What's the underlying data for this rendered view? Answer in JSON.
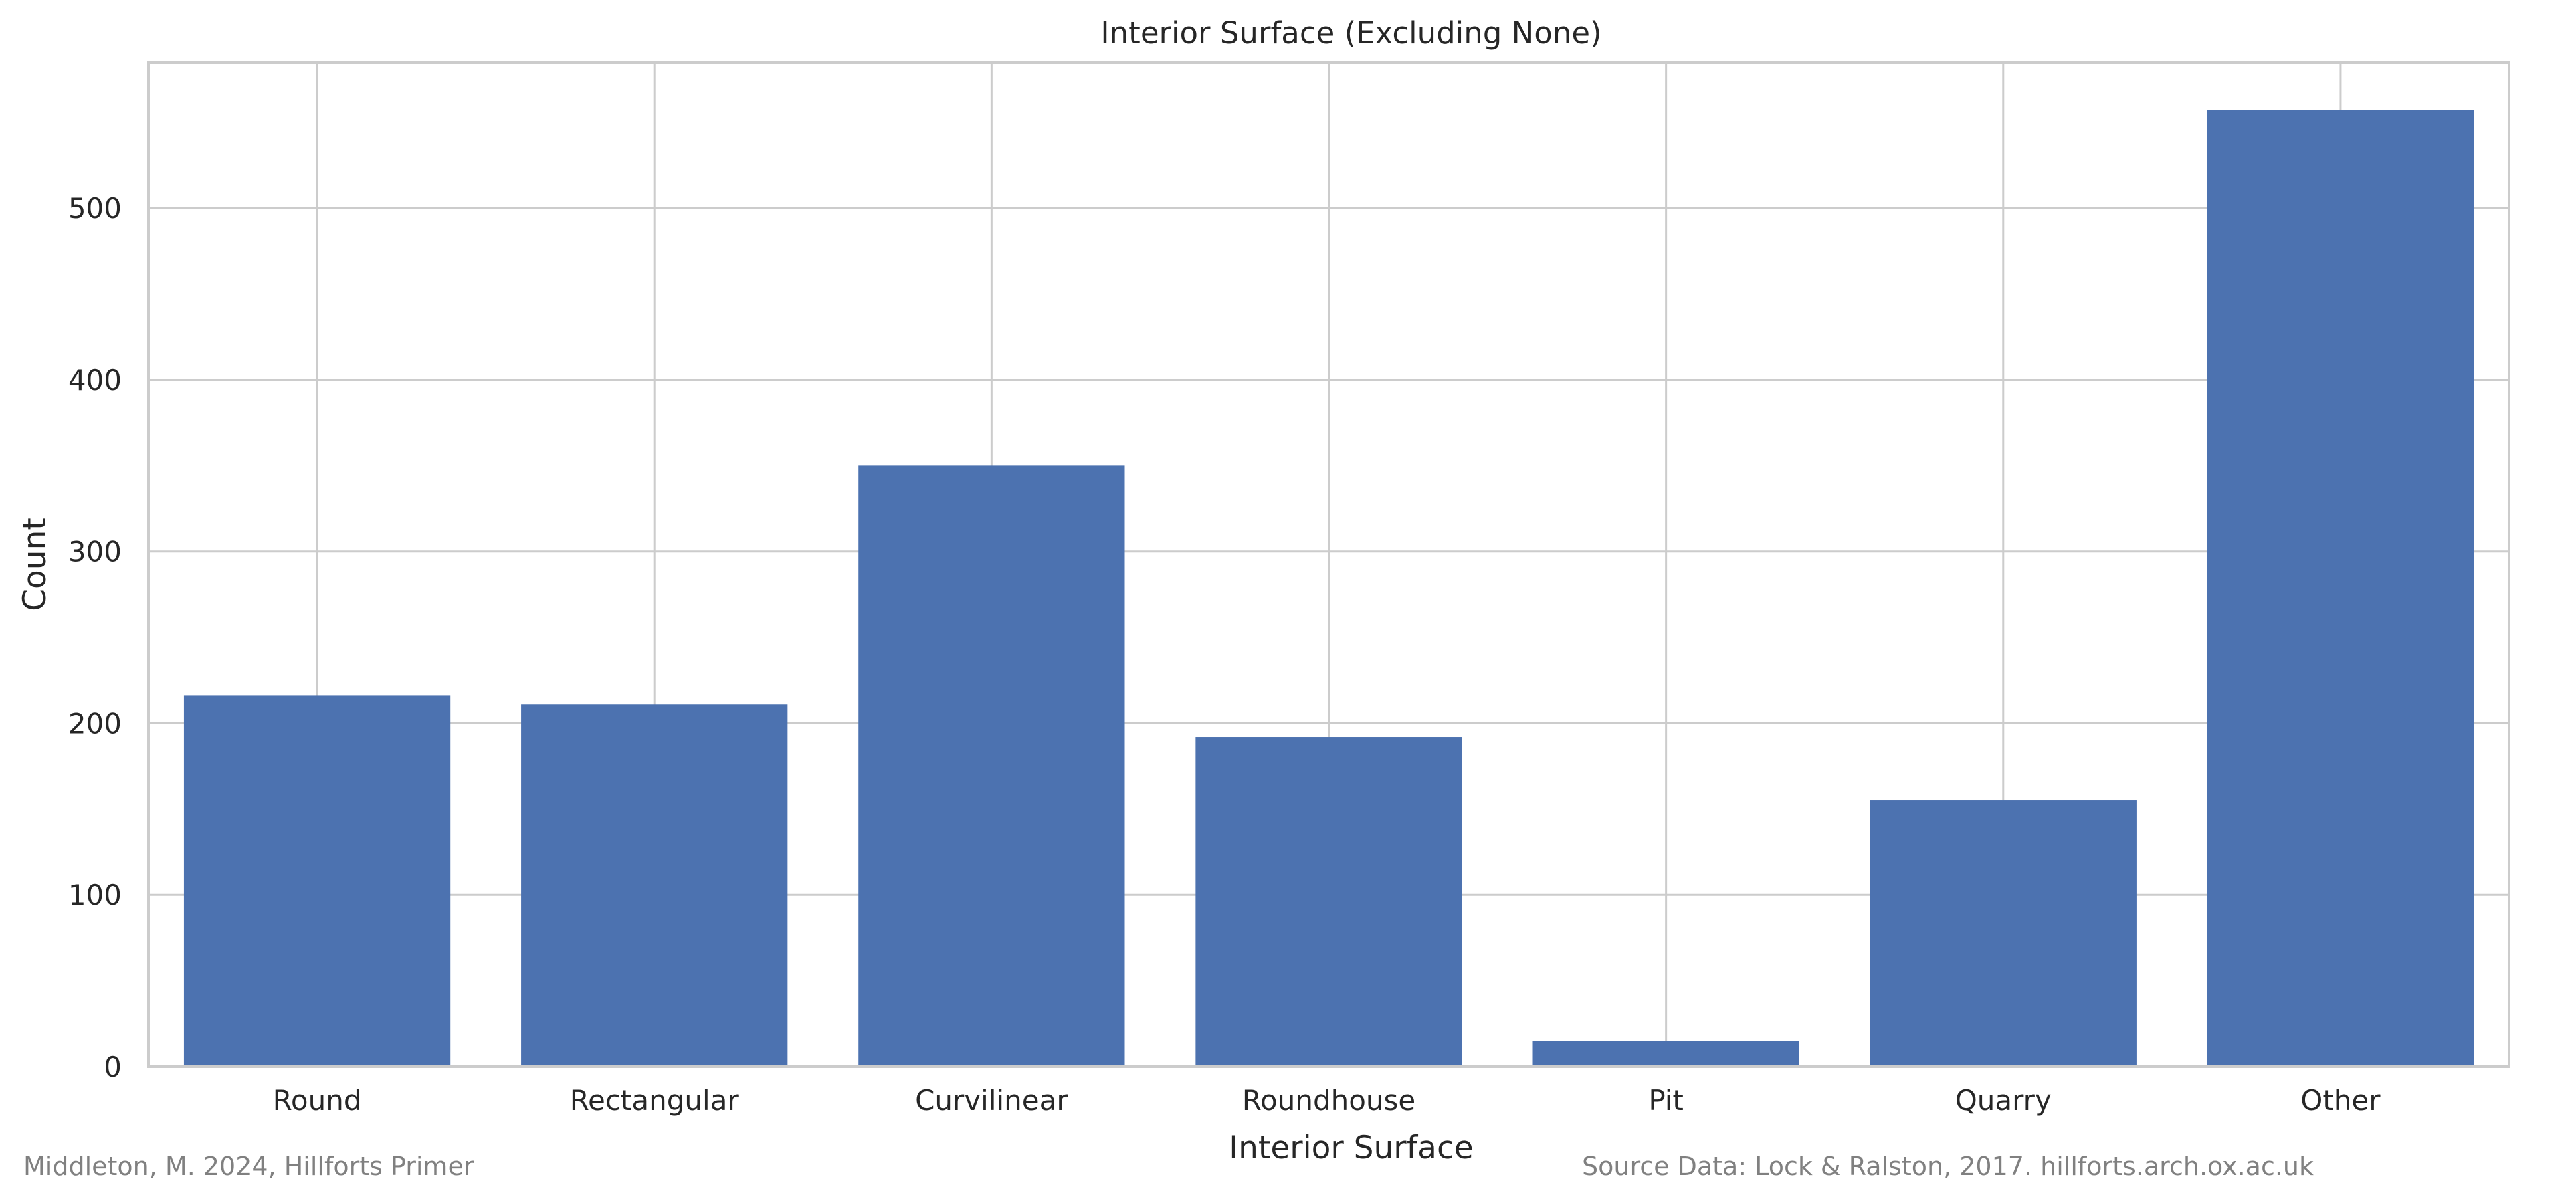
{
  "chart_data": {
    "type": "bar",
    "title": "Interior Surface (Excluding None)",
    "xlabel": "Interior Surface",
    "ylabel": "Count",
    "categories": [
      "Round",
      "Rectangular",
      "Curvilinear",
      "Roundhouse",
      "Pit",
      "Quarry",
      "Other"
    ],
    "values": [
      216,
      211,
      350,
      192,
      15,
      155,
      557
    ],
    "ylim": [
      0,
      585
    ],
    "yticks": [
      0,
      100,
      200,
      300,
      400,
      500
    ],
    "grid": true,
    "bar_color": "#4c72b0"
  },
  "credits": {
    "left": "Middleton, M. 2024, Hillforts Primer",
    "right": "Source Data: Lock & Ralston, 2017. hillforts.arch.ox.ac.uk"
  }
}
